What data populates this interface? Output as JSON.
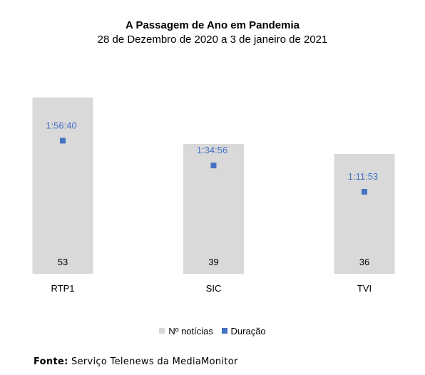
{
  "header": {
    "title": "A Passagem de Ano em Pandemia",
    "subtitle": "28 de Dezembro de 2020 a 3 de janeiro de 2021"
  },
  "chart_data": {
    "type": "bar",
    "categories": [
      "RTP1",
      "SIC",
      "TVI"
    ],
    "series": [
      {
        "name": "Nº notícias",
        "kind": "bar",
        "color": "#d9d9d9",
        "values": [
          53,
          39,
          36
        ]
      },
      {
        "name": "Duração",
        "kind": "marker",
        "color": "#4472c4",
        "values": [
          "1:56:40",
          "1:34:56",
          "1:11:53"
        ],
        "seconds": [
          7000,
          5696,
          4313
        ]
      }
    ],
    "ylim_bars": [
      0,
      60
    ],
    "ylim_duration_seconds": [
      0,
      10500
    ],
    "grid": false,
    "legend_position": "bottom"
  },
  "legend": {
    "bars_label": "Nº notícias",
    "markers_label": "Duração"
  },
  "source": {
    "label": "Fonte:",
    "text": "Serviço Telenews da MediaMonitor"
  },
  "colors": {
    "bar": "#d9d9d9",
    "marker": "#4472c4",
    "marker_label": "#4472c4"
  }
}
